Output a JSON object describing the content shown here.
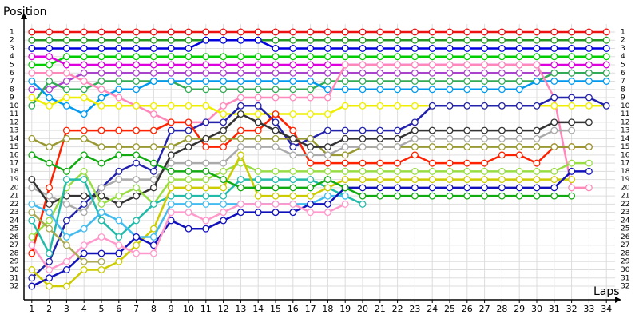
{
  "chart_data": {
    "type": "line",
    "y_title": "Position",
    "x_title": "Laps",
    "y_inverted": true,
    "grid": true,
    "x": [
      1,
      2,
      3,
      4,
      5,
      6,
      7,
      8,
      9,
      10,
      11,
      12,
      13,
      14,
      15,
      16,
      17,
      18,
      19,
      20,
      21,
      22,
      23,
      24,
      25,
      26,
      27,
      28,
      29,
      30,
      31,
      32,
      33,
      34
    ],
    "xlim": [
      0,
      35
    ],
    "ylim": [
      0,
      33.5
    ],
    "xticks": [
      1,
      2,
      3,
      4,
      5,
      6,
      7,
      8,
      9,
      10,
      11,
      12,
      13,
      14,
      15,
      16,
      17,
      18,
      19,
      20,
      21,
      22,
      23,
      24,
      25,
      26,
      27,
      28,
      29,
      30,
      31,
      32,
      33,
      34
    ],
    "yticks": [
      1,
      2,
      3,
      4,
      5,
      6,
      7,
      8,
      9,
      10,
      11,
      12,
      13,
      14,
      15,
      16,
      17,
      18,
      19,
      20,
      21,
      22,
      23,
      24,
      25,
      26,
      27,
      28,
      29,
      30,
      31,
      32
    ],
    "series": [
      {
        "color": "#ee1111",
        "values": [
          1,
          1,
          1,
          1,
          1,
          1,
          1,
          1,
          1,
          1,
          1,
          1,
          1,
          1,
          1,
          1,
          1,
          1,
          1,
          1,
          1,
          1,
          1,
          1,
          1,
          1,
          1,
          1,
          1,
          1,
          1,
          1,
          1,
          1
        ]
      },
      {
        "color": "#229922",
        "values": [
          2,
          2,
          2,
          2,
          2,
          2,
          2,
          2,
          2,
          2,
          2,
          2,
          2,
          2,
          2,
          2,
          2,
          2,
          2,
          2,
          2,
          2,
          2,
          2,
          2,
          2,
          2,
          2,
          2,
          2,
          2,
          2,
          2,
          2
        ]
      },
      {
        "color": "#0000dd",
        "values": [
          3,
          3,
          3,
          3,
          3,
          3,
          3,
          3,
          3,
          3,
          2,
          2,
          2,
          2,
          3,
          3,
          3,
          3,
          3,
          3,
          3,
          3,
          3,
          3,
          3,
          3,
          3,
          3,
          3,
          3,
          3,
          3,
          3,
          3
        ]
      },
      {
        "color": "#00cc00",
        "values": [
          5,
          5,
          4,
          4,
          4,
          4,
          4,
          4,
          4,
          4,
          4,
          4,
          4,
          4,
          4,
          4,
          4,
          4,
          4,
          4,
          4,
          4,
          4,
          4,
          4,
          4,
          4,
          4,
          4,
          4,
          4,
          4,
          4,
          4
        ]
      },
      {
        "color": "#dd00dd",
        "values": [
          4,
          4,
          5,
          5,
          5,
          5,
          5,
          5,
          5,
          5,
          5,
          5,
          5,
          5,
          5,
          5,
          5,
          5,
          5,
          5,
          5,
          5,
          5,
          5,
          5,
          5,
          5,
          5,
          5,
          5,
          5,
          5,
          5,
          5
        ]
      },
      {
        "color": "#aa44cc",
        "values": [
          8,
          8,
          7,
          6,
          6,
          6,
          6,
          6,
          6,
          6,
          6,
          6,
          6,
          6,
          6,
          6,
          6,
          6,
          6,
          6,
          6,
          6,
          6,
          6,
          6,
          6,
          6,
          6,
          6,
          6,
          6,
          6,
          6,
          6
        ]
      },
      {
        "color": "#33aa55",
        "values": [
          10,
          7,
          8,
          8,
          7,
          7,
          7,
          7,
          7,
          8,
          8,
          8,
          8,
          8,
          8,
          8,
          8,
          7,
          7,
          7,
          7,
          7,
          7,
          7,
          7,
          7,
          7,
          7,
          7,
          7,
          6,
          6,
          6,
          6
        ]
      },
      {
        "color": "#0099ee",
        "values": [
          7,
          9,
          10,
          11,
          9,
          8,
          8,
          7,
          7,
          7,
          7,
          7,
          7,
          7,
          7,
          7,
          7,
          8,
          8,
          8,
          8,
          8,
          8,
          8,
          8,
          8,
          8,
          8,
          8,
          7,
          7,
          7,
          7,
          7
        ]
      },
      {
        "color": "#ff88bb",
        "values": [
          6,
          6,
          6,
          7,
          8,
          9,
          10,
          11,
          12,
          12,
          12,
          10,
          9,
          9,
          9,
          9,
          9,
          9,
          5,
          5,
          5,
          5,
          5,
          5,
          5,
          5,
          5,
          5,
          5,
          5,
          9,
          20,
          20,
          null
        ]
      },
      {
        "color": "#eeee00",
        "values": [
          9,
          10,
          9,
          9,
          10,
          10,
          10,
          10,
          10,
          10,
          10,
          11,
          11,
          11,
          11,
          11,
          11,
          11,
          10,
          10,
          10,
          10,
          10,
          10,
          10,
          10,
          10,
          10,
          10,
          10,
          10,
          10,
          10,
          10
        ]
      },
      {
        "color": "#2222aa",
        "values": [
          31,
          29,
          24,
          22,
          20,
          18,
          17,
          18,
          13,
          13,
          12,
          12,
          10,
          10,
          12,
          15,
          14,
          13,
          13,
          13,
          13,
          13,
          12,
          10,
          10,
          10,
          10,
          10,
          10,
          10,
          9,
          9,
          9,
          10
        ]
      },
      {
        "color": "#ff2200",
        "values": [
          28,
          20,
          13,
          13,
          13,
          13,
          13,
          13,
          12,
          12,
          15,
          15,
          13,
          13,
          11,
          13,
          17,
          17,
          17,
          17,
          17,
          17,
          16,
          17,
          17,
          17,
          17,
          16,
          16,
          17,
          15,
          15,
          15,
          null
        ]
      },
      {
        "color": "#999933",
        "values": [
          14,
          15,
          14,
          14,
          15,
          15,
          15,
          15,
          15,
          14,
          14,
          14,
          14,
          14,
          14,
          14,
          14,
          16,
          16,
          15,
          15,
          15,
          15,
          15,
          15,
          15,
          15,
          15,
          15,
          15,
          15,
          15,
          15,
          null
        ]
      },
      {
        "color": "#aaaaaa",
        "values": [
          20,
          21,
          22,
          23,
          20,
          19,
          19,
          19,
          17,
          17,
          17,
          17,
          15,
          15,
          15,
          16,
          16,
          16,
          15,
          15,
          15,
          15,
          14,
          14,
          14,
          14,
          14,
          14,
          14,
          14,
          13,
          13,
          null,
          null
        ]
      },
      {
        "color": "#333333",
        "values": [
          19,
          22,
          21,
          21,
          21,
          22,
          21,
          20,
          16,
          15,
          14,
          13,
          11,
          12,
          13,
          14,
          15,
          15,
          14,
          14,
          14,
          14,
          13,
          13,
          13,
          13,
          13,
          13,
          13,
          13,
          12,
          12,
          12,
          null
        ]
      },
      {
        "color": "#99dd44",
        "values": [
          26,
          24,
          20,
          18,
          22,
          21,
          20,
          22,
          19,
          19,
          19,
          18,
          17,
          18,
          18,
          18,
          18,
          18,
          18,
          18,
          18,
          18,
          18,
          18,
          18,
          18,
          18,
          18,
          18,
          18,
          18,
          17,
          17,
          null
        ]
      },
      {
        "color": "#22bbaa",
        "values": [
          24,
          28,
          19,
          19,
          24,
          26,
          24,
          22,
          21,
          21,
          21,
          21,
          19,
          19,
          19,
          19,
          19,
          20,
          21,
          22,
          null,
          null,
          null,
          null,
          null,
          null,
          null,
          null,
          null,
          null,
          null,
          null,
          null,
          null
        ]
      },
      {
        "color": "#cccc00",
        "values": [
          30,
          32,
          32,
          30,
          30,
          29,
          27,
          25,
          20,
          20,
          20,
          20,
          16,
          21,
          21,
          21,
          21,
          20,
          19,
          19,
          19,
          19,
          19,
          19,
          19,
          19,
          19,
          19,
          19,
          19,
          19,
          19,
          null,
          null
        ]
      },
      {
        "color": "#44bbee",
        "values": [
          22,
          23,
          26,
          25,
          23,
          24,
          26,
          26,
          22,
          22,
          22,
          22,
          22,
          22,
          22,
          22,
          22,
          21,
          21,
          null,
          null,
          null,
          null,
          null,
          null,
          null,
          null,
          null,
          null,
          null,
          null,
          null,
          null,
          null
        ]
      },
      {
        "color": "#1111bb",
        "values": [
          32,
          31,
          30,
          28,
          28,
          28,
          26,
          27,
          24,
          25,
          25,
          24,
          23,
          23,
          23,
          23,
          22,
          22,
          20,
          20,
          20,
          20,
          20,
          20,
          20,
          20,
          20,
          20,
          20,
          20,
          20,
          18,
          18,
          null
        ]
      },
      {
        "color": "#ff99cc",
        "values": [
          27,
          30,
          29,
          27,
          26,
          27,
          28,
          28,
          23,
          23,
          24,
          23,
          22,
          22,
          22,
          22,
          23,
          23,
          22,
          null,
          null,
          null,
          null,
          null,
          null,
          null,
          null,
          null,
          null,
          null,
          null,
          null,
          null,
          null
        ]
      },
      {
        "color": "#11aa11",
        "values": [
          16,
          17,
          18,
          16,
          17,
          16,
          16,
          17,
          18,
          18,
          18,
          19,
          20,
          20,
          20,
          20,
          20,
          19,
          20,
          21,
          21,
          21,
          21,
          21,
          21,
          21,
          21,
          21,
          21,
          21,
          21,
          21,
          null,
          null
        ]
      },
      {
        "color": "#aaaa55",
        "values": [
          23,
          25,
          27,
          29,
          29,
          null,
          null,
          null,
          null,
          null,
          null,
          null,
          null,
          null,
          null,
          null,
          null,
          null,
          null,
          null,
          null,
          null,
          null,
          null,
          null,
          null,
          null,
          null,
          null,
          null,
          null,
          null,
          null,
          null
        ]
      }
    ]
  }
}
